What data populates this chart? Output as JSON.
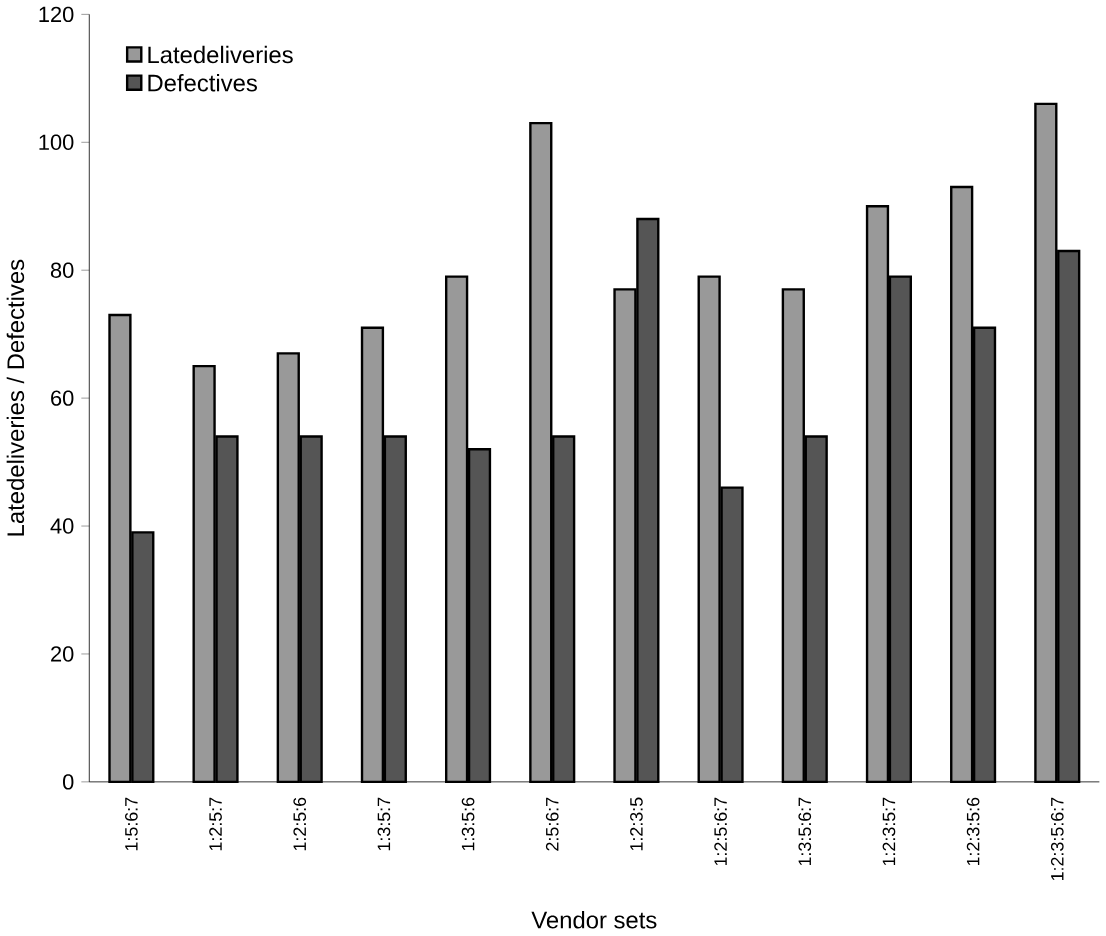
{
  "chart_data": {
    "type": "bar",
    "xlabel": "Vendor sets",
    "ylabel": "Latedeliveries / Defectives",
    "categories": [
      "1:5:6:7",
      "1:2:5:7",
      "1:2:5:6",
      "1:3:5:7",
      "1:3:5:6",
      "2:5:6:7",
      "1:2:3:5",
      "1:2:5:6:7",
      "1:3:5:6:7",
      "1:2:3:5:7",
      "1:2:3:5:6",
      "1:2:3:5:6:7"
    ],
    "series": [
      {
        "name": "Latedeliveries",
        "color": "#999999",
        "values": [
          73,
          65,
          67,
          71,
          79,
          103,
          77,
          79,
          77,
          90,
          93,
          106
        ]
      },
      {
        "name": "Defectives",
        "color": "#555555",
        "values": [
          39,
          54,
          54,
          54,
          52,
          54,
          88,
          46,
          54,
          79,
          71,
          83
        ]
      }
    ],
    "ylim": [
      0,
      120
    ],
    "yticks": [
      0,
      20,
      40,
      60,
      80,
      100,
      120
    ],
    "grid": false,
    "legend": "top left"
  }
}
